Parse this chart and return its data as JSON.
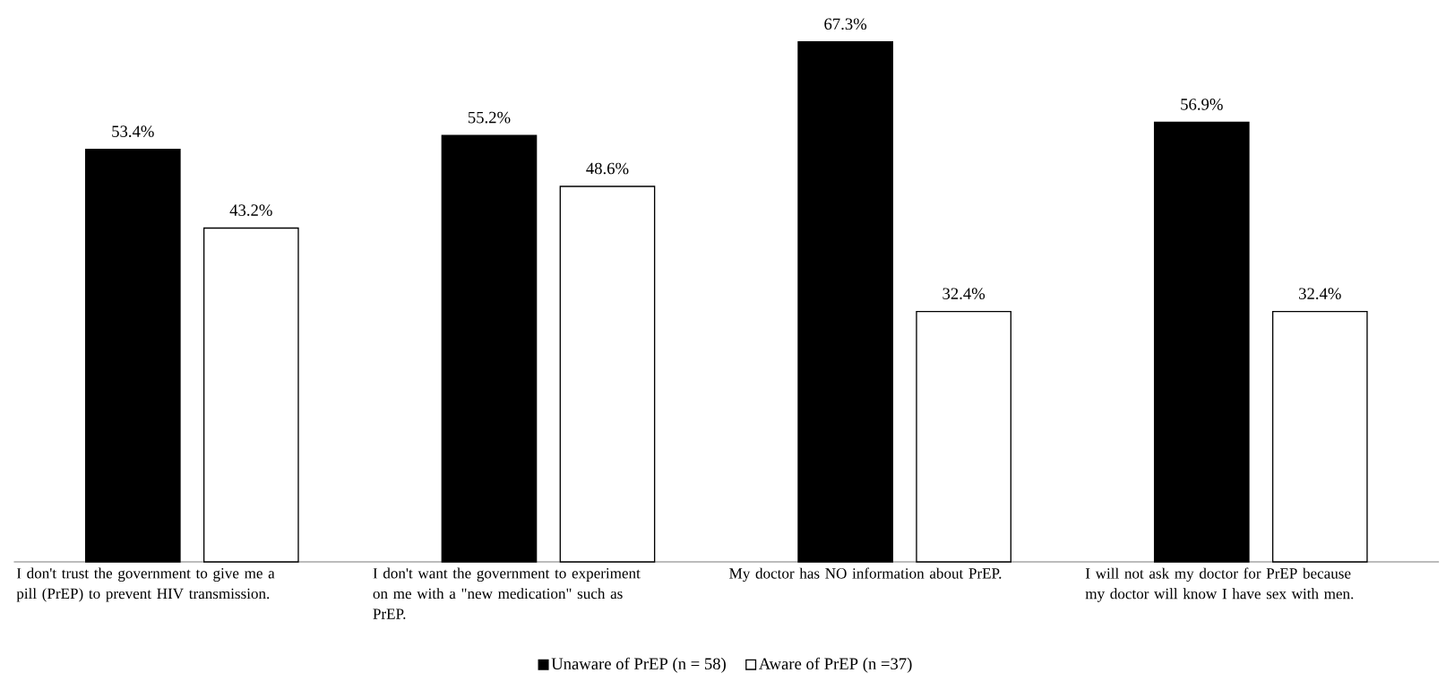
{
  "chart_data": {
    "type": "bar",
    "categories": [
      "I don't trust the government to give me a pill (PrEP) to prevent HIV transmission.",
      "I don't want the government to experiment on me with a \"new medication\" such as PrEP.",
      "My doctor has NO information about PrEP.",
      "I will not ask my doctor for PrEP because my doctor will know I have sex with men."
    ],
    "series": [
      {
        "name": "Unaware of PrEP (n = 58)",
        "color": "#000000",
        "values": [
          53.4,
          55.2,
          67.3,
          56.9
        ],
        "value_labels": [
          "53.4%",
          "55.2%",
          "67.3%",
          "56.9%"
        ]
      },
      {
        "name": "Aware of PrEP (n =37)",
        "color": "#ffffff",
        "values": [
          43.2,
          48.6,
          32.4,
          32.4
        ],
        "value_labels": [
          "43.2%",
          "48.6%",
          "32.4%",
          "32.4%"
        ]
      }
    ],
    "legend": "bottom"
  }
}
